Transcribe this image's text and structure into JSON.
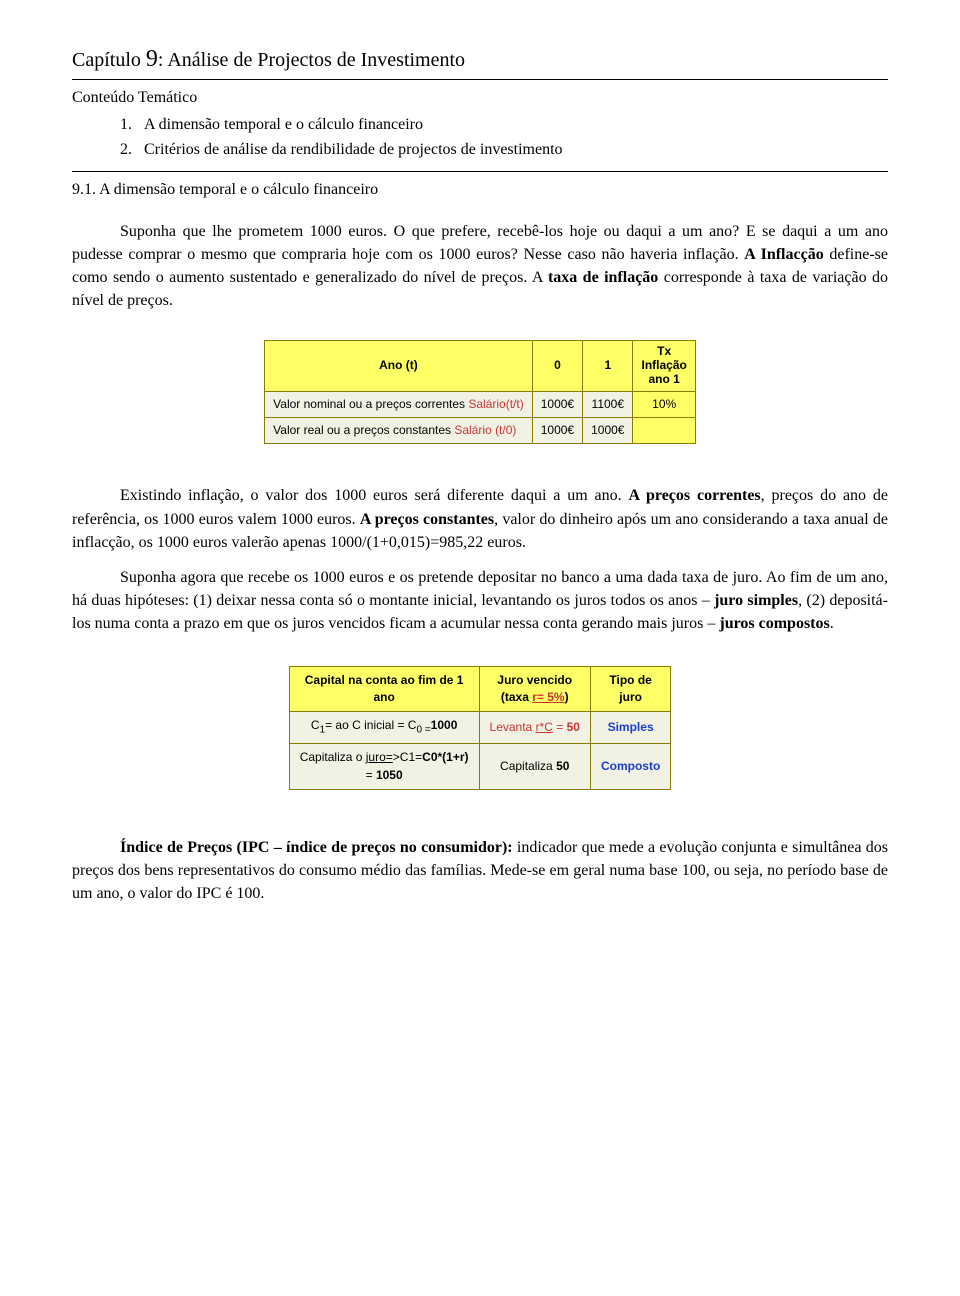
{
  "chapter": {
    "prefix": "Capítulo ",
    "num_big": "9",
    "sep_title": ": Análise de Projectos de Investimento"
  },
  "subhead": "Conteúdo Temático",
  "toc": [
    {
      "num": "1.",
      "text": "A dimensão temporal e o cálculo financeiro"
    },
    {
      "num": "2.",
      "text": "Critérios de análise da rendibilidade de projectos de investimento"
    }
  ],
  "section": "9.1. A dimensão temporal e o cálculo financeiro",
  "para1": {
    "a": "Suponha que lhe prometem 1000 euros. O que prefere, recebê-los hoje ou daqui a um ano? E se daqui a um ano pudesse comprar o mesmo que compraria hoje com os 1000 euros? Nesse caso não haveria inflação. ",
    "b_bold": "A Inflacção",
    "c": " define-se como sendo o aumento sustentado e generalizado do nível de preços. A ",
    "d_bold": "taxa de inflação",
    "e": " corresponde à taxa de variação do nível de preços."
  },
  "infl_table": {
    "header": {
      "col0": "Ano (t)",
      "col1": "0",
      "col2": "1",
      "col3_l1": "Tx",
      "col3_l2": "Inflação",
      "col3_l3": "ano 1"
    },
    "rows": [
      {
        "label_plain": "Valor nominal  ou a preços  correntes  ",
        "label_red": "Salário(t/t)",
        "v0": "1000€",
        "v1": "1100€",
        "pct": "10%"
      },
      {
        "label_plain": "Valor real  ou a preços  constantes      ",
        "label_red": "Salário (t/0)",
        "v0": "1000€",
        "v1": "1000€",
        "pct": ""
      }
    ],
    "colors": {
      "header_bg": "#ffff66",
      "body_bg": "#f1f2e4",
      "border": "#8a7a00",
      "red": "#cc3333"
    }
  },
  "para2": {
    "a": "Existindo inflação, o valor dos 1000 euros será diferente daqui a um ano. ",
    "b_bold": "A preços correntes",
    "c": ", preços do ano de referência, os 1000 euros valem 1000 euros. ",
    "d_bold": "A preços constantes",
    "e": ", valor do dinheiro após um ano considerando a taxa anual de inflacção, os 1000 euros valerão apenas 1000/(1+0,015)=985,22 euros."
  },
  "para3": {
    "a": "Suponha agora que recebe os 1000 euros e os pretende depositar no banco a uma dada taxa de juro. Ao fim de um ano, há duas hipóteses: (1) deixar nessa conta só o montante inicial, levantando os juros todos os anos – ",
    "b_bold": "juro simples",
    "c": ", (2) depositá-los numa conta a prazo em que os juros vencidos ficam a acumular nessa conta gerando mais juros – ",
    "d_bold": "juros compostos",
    "e": "."
  },
  "cap_table": {
    "header": {
      "col0_l1": "Capital na conta ao fim de 1",
      "col0_l2": "ano",
      "col1_l1": "Juro vencido",
      "col1_l2a": "(taxa ",
      "col1_l2_red": "r= 5%",
      "col1_l2b": ")",
      "col2_l1": "Tipo de",
      "col2_l2": "juro"
    },
    "rows": [
      {
        "c0_a": "C",
        "c0_sub1": "1",
        "c0_b": "= ao C inicial = C",
        "c0_sub0": "0 =",
        "c0_bold": "1000",
        "c1_red_a": "Levanta  ",
        "c1_red_und": "r*C",
        "c1_red_b": " = ",
        "c1_red_bold": "50",
        "c2_blue": "Simples"
      },
      {
        "c0_a2": "Capitaliza o ",
        "c0_und": "juro=",
        "c0_b2": ">C1=",
        "c0_bold2a": "C0*(1+r)",
        "c0_line2_a": "= ",
        "c0_line2_bold": "1050",
        "c1_a": "Capitaliza ",
        "c1_bold": "50",
        "c2_blue": "Composto"
      }
    ],
    "colors": {
      "header_bg": "#ffff66",
      "body_bg": "#f1f2e4",
      "border": "#8a7a00",
      "red": "#cc3333",
      "blue": "#1a3fcc"
    }
  },
  "para4": {
    "a_bold": "Índice de Preços (IPC – índice de preços no consumidor):",
    "b": " indicador que mede a evolução conjunta e simultânea dos preços dos bens representativos do consumo médio das famílias. Mede-se em geral numa base 100, ou seja, no período base de um ano, o valor do IPC é 100."
  }
}
